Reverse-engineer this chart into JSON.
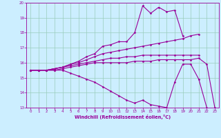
{
  "line1_x": [
    0,
    1,
    2,
    3,
    4,
    5,
    6,
    7,
    8,
    9,
    10,
    11,
    12,
    13,
    14,
    15,
    16,
    17,
    18,
    19
  ],
  "line1_y": [
    15.5,
    15.5,
    15.5,
    15.6,
    15.7,
    15.9,
    16.1,
    16.4,
    16.6,
    17.1,
    17.2,
    17.4,
    17.4,
    18.0,
    19.8,
    19.3,
    19.7,
    19.4,
    19.5,
    17.8
  ],
  "line2_x": [
    0,
    1,
    2,
    3,
    4,
    5,
    6,
    7,
    8,
    9,
    10,
    11,
    12,
    13,
    14,
    15,
    16,
    17,
    18,
    19,
    20,
    21
  ],
  "line2_y": [
    15.5,
    15.5,
    15.5,
    15.6,
    15.7,
    15.9,
    16.0,
    16.2,
    16.4,
    16.6,
    16.7,
    16.8,
    16.9,
    17.0,
    17.1,
    17.2,
    17.3,
    17.4,
    17.5,
    17.6,
    17.8,
    17.9
  ],
  "line3_x": [
    0,
    1,
    2,
    3,
    4,
    5,
    6,
    7,
    8,
    9,
    10,
    11,
    12,
    13,
    14,
    15,
    16,
    17,
    18,
    19,
    20,
    21
  ],
  "line3_y": [
    15.5,
    15.5,
    15.5,
    15.6,
    15.7,
    15.8,
    15.9,
    16.0,
    16.1,
    16.2,
    16.3,
    16.3,
    16.4,
    16.4,
    16.5,
    16.5,
    16.5,
    16.5,
    16.5,
    16.5,
    16.5,
    16.5
  ],
  "line4_x": [
    0,
    1,
    2,
    3,
    4,
    5,
    6,
    7,
    8,
    9,
    10,
    11,
    12,
    13,
    14,
    15,
    16,
    17,
    18,
    19,
    20,
    21,
    22
  ],
  "line4_y": [
    15.5,
    15.5,
    15.5,
    15.5,
    15.5,
    15.3,
    15.1,
    14.9,
    14.7,
    14.4,
    14.1,
    13.8,
    13.5,
    13.3,
    13.5,
    13.2,
    13.1,
    13.0,
    14.7,
    15.9,
    15.9,
    14.9,
    13.0
  ],
  "line5_x": [
    0,
    1,
    2,
    3,
    4,
    5,
    6,
    7,
    8,
    9,
    10,
    11,
    12,
    13,
    14,
    15,
    16,
    17,
    18,
    19,
    20,
    21,
    22,
    23
  ],
  "line5_y": [
    15.5,
    15.5,
    15.5,
    15.5,
    15.6,
    15.7,
    15.8,
    15.9,
    16.0,
    16.0,
    16.0,
    16.0,
    16.0,
    16.1,
    16.1,
    16.1,
    16.2,
    16.2,
    16.2,
    16.2,
    16.2,
    16.3,
    15.9,
    13.0
  ],
  "ylim": [
    13,
    20
  ],
  "xlim": [
    -0.5,
    23.5
  ],
  "yticks": [
    13,
    14,
    15,
    16,
    17,
    18,
    19,
    20
  ],
  "xticks": [
    0,
    1,
    2,
    3,
    4,
    5,
    6,
    7,
    8,
    9,
    10,
    11,
    12,
    13,
    14,
    15,
    16,
    17,
    18,
    19,
    20,
    21,
    22,
    23
  ],
  "xlabel": "Windchill (Refroidissement éolien,°C)",
  "line_color": "#990099",
  "bg_color": "#cceeff",
  "grid_color": "#99ccbb",
  "marker": "D",
  "marker_size": 1.5,
  "line_width": 0.8,
  "tick_fontsize": 4.0,
  "xlabel_fontsize": 4.8
}
